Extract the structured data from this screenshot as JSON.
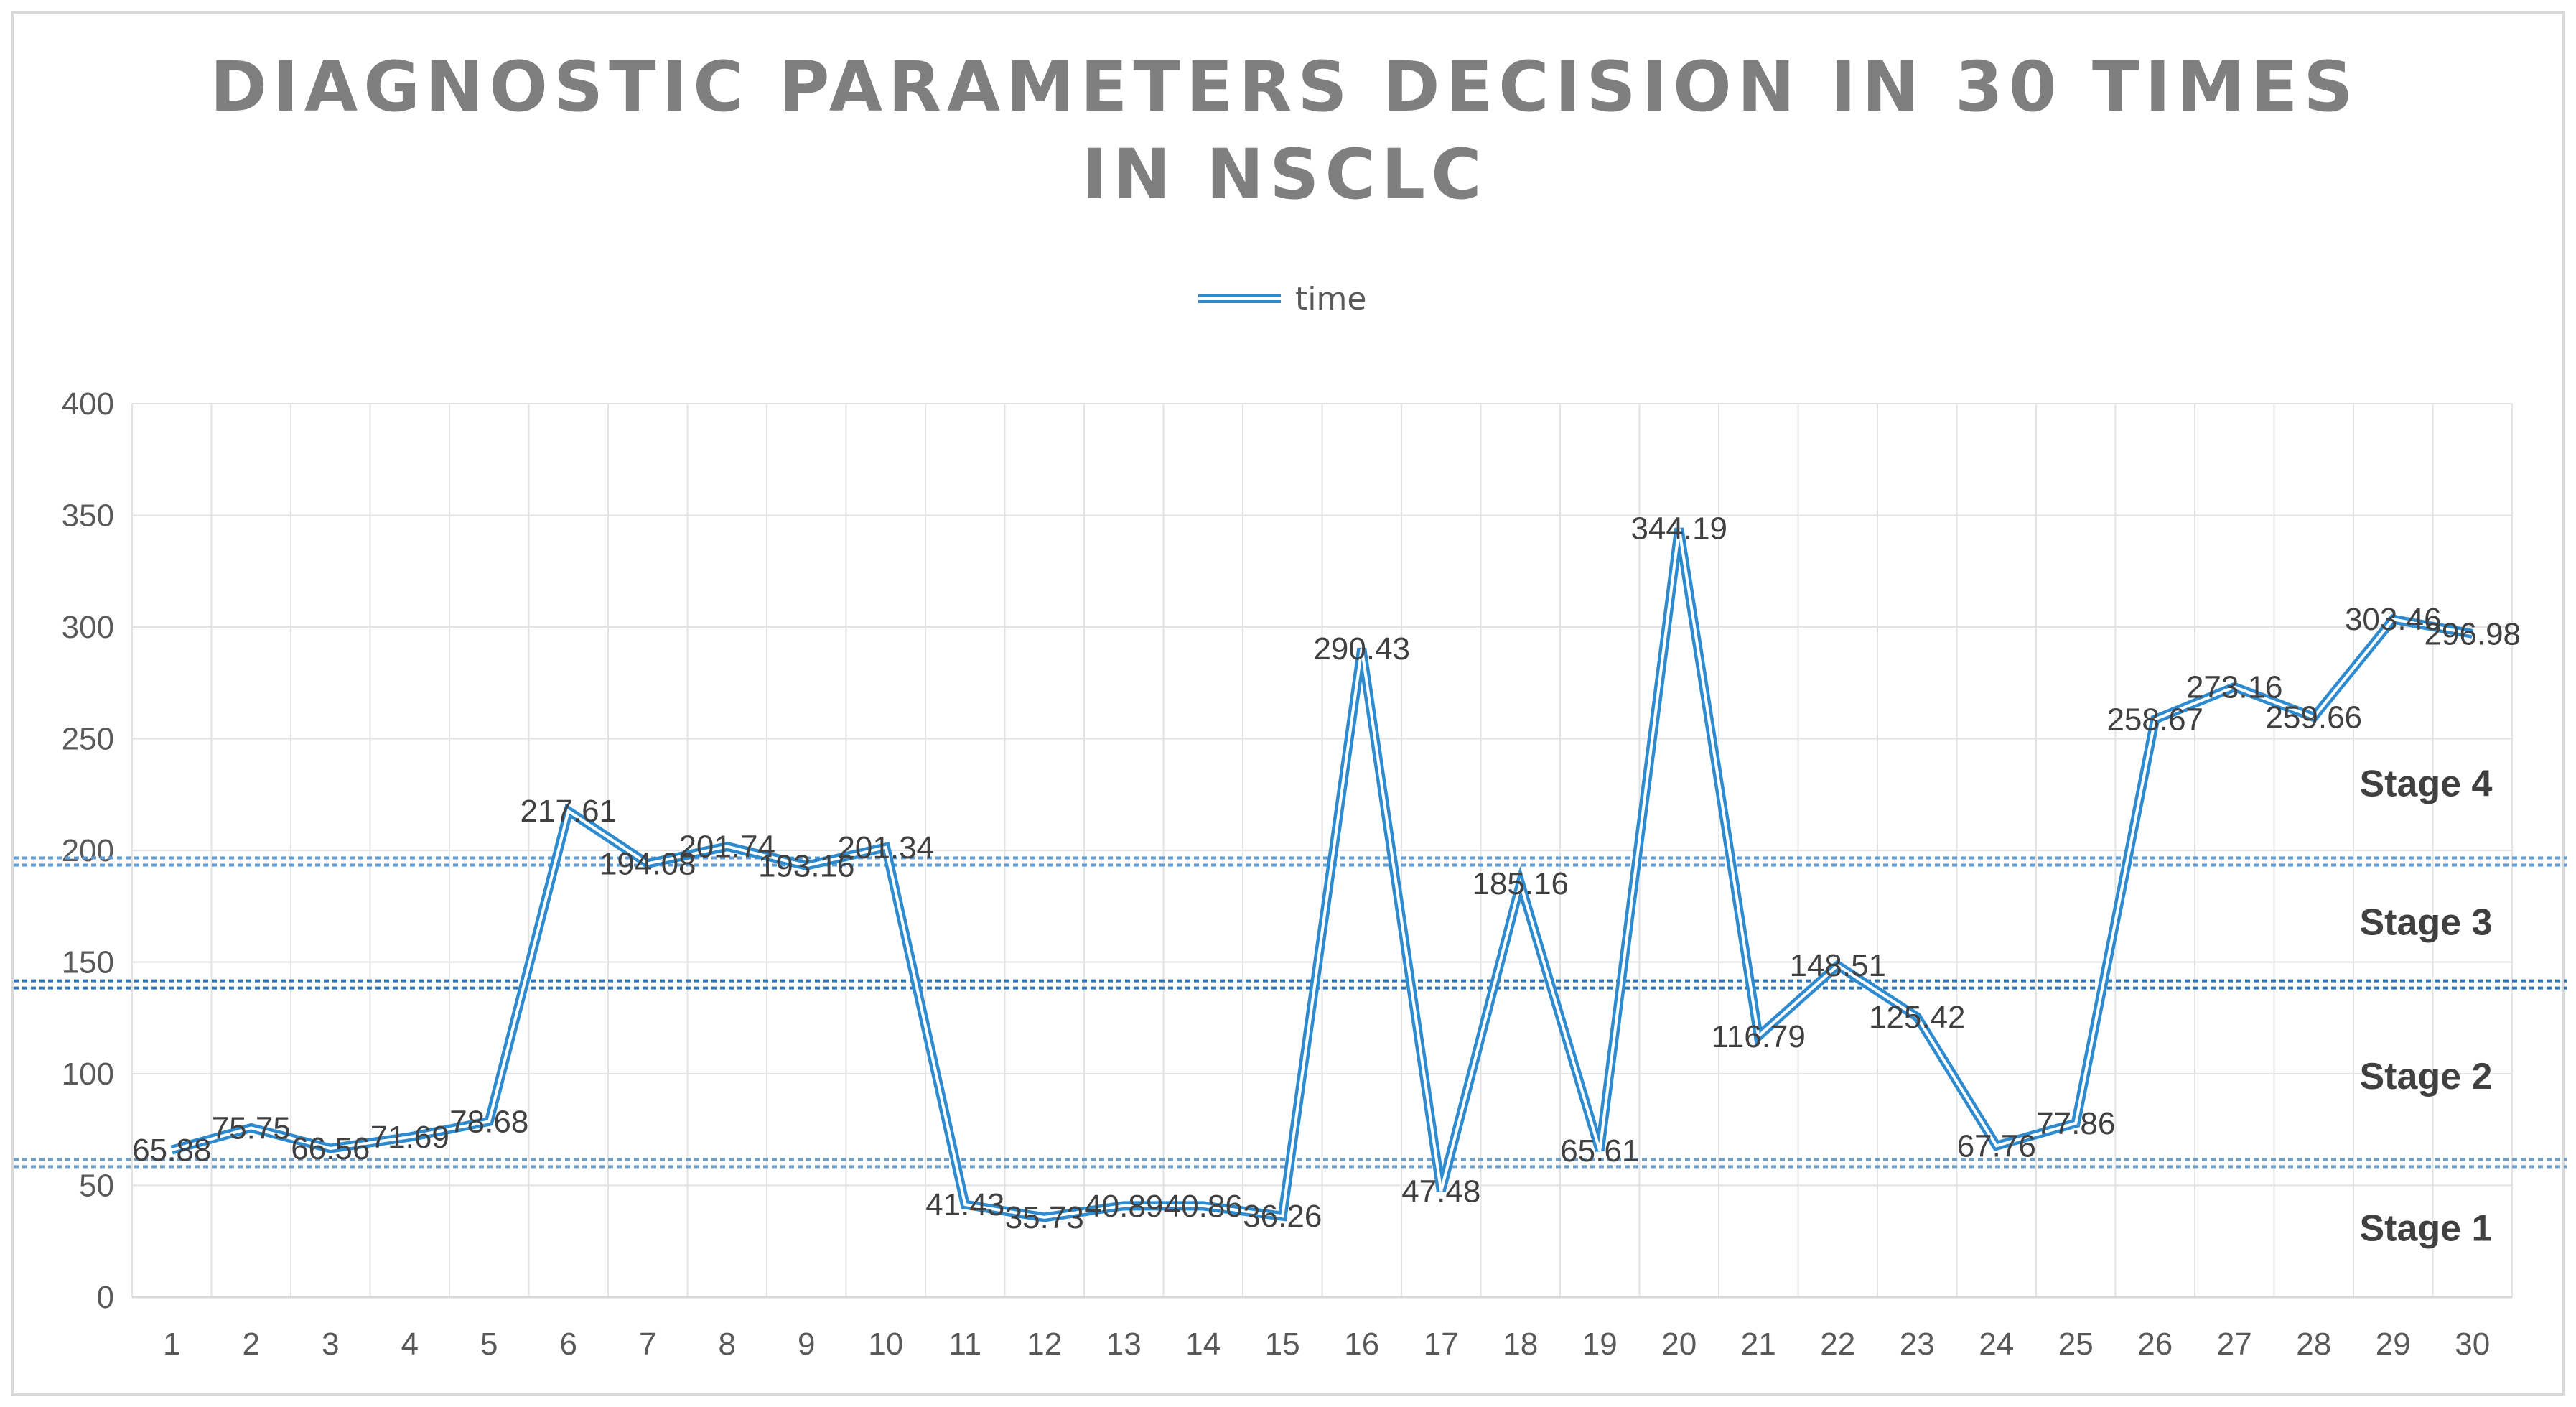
{
  "chart_data": {
    "type": "line",
    "title": "DIAGNOSTIC PARAMETERS DECISION IN 30 TIMES IN NSCLC",
    "title_lines": [
      "DIAGNOSTIC PARAMETERS DECISION IN 30 TIMES",
      "IN NSCLC"
    ],
    "xlabel": "",
    "ylabel": "",
    "ylim": [
      0,
      400
    ],
    "y_ticks": [
      0,
      50,
      100,
      150,
      200,
      250,
      300,
      350,
      400
    ],
    "categories": [
      "1",
      "2",
      "3",
      "4",
      "5",
      "6",
      "7",
      "8",
      "9",
      "10",
      "11",
      "12",
      "13",
      "14",
      "15",
      "16",
      "17",
      "18",
      "19",
      "20",
      "21",
      "22",
      "23",
      "24",
      "25",
      "26",
      "27",
      "28",
      "29",
      "30"
    ],
    "grid": true,
    "legend_position": "top-center",
    "series": [
      {
        "name": "time",
        "color": "#2e8bd0",
        "values": [
          65.88,
          75.75,
          66.56,
          71.69,
          78.68,
          217.61,
          194.08,
          201.74,
          193.16,
          201.34,
          41.43,
          35.73,
          40.89,
          40.86,
          36.26,
          290.43,
          47.48,
          185.16,
          65.61,
          344.19,
          116.79,
          148.51,
          125.42,
          67.76,
          77.86,
          258.67,
          273.16,
          259.66,
          303.46,
          296.98
        ],
        "data_labels": [
          "65.88",
          "75.75",
          "66.56",
          "71.69",
          "78.68",
          "217.61",
          "194.08",
          "201.74",
          "193.16",
          "201.34",
          "41.43",
          "35.73",
          "40.89",
          "40.86",
          "36.26",
          "290.43",
          "47.48",
          "185.16",
          "65.61",
          "344.19",
          "116.79",
          "148.51",
          "125.42",
          "67.76",
          "77.86",
          "258.67",
          "273.16",
          "259.66",
          "303.46",
          "296.98"
        ]
      }
    ],
    "thresholds": [
      {
        "name": "stage-1-2-boundary",
        "value": 60,
        "color": "#6f9fc8"
      },
      {
        "name": "stage-2-3-boundary",
        "value": 140,
        "color": "#2e75b6"
      },
      {
        "name": "stage-3-4-boundary",
        "value": 195,
        "color": "#5b9bd5"
      }
    ],
    "stage_labels": [
      {
        "label": "Stage 4",
        "y_value": 230
      },
      {
        "label": "Stage 3",
        "y_value": 168
      },
      {
        "label": "Stage 2",
        "y_value": 99
      },
      {
        "label": "Stage 1",
        "y_value": 31
      }
    ],
    "colors": {
      "grid": "#e3e3e3",
      "axis": "#d9d9d9",
      "line": "#2e8bd0"
    }
  }
}
